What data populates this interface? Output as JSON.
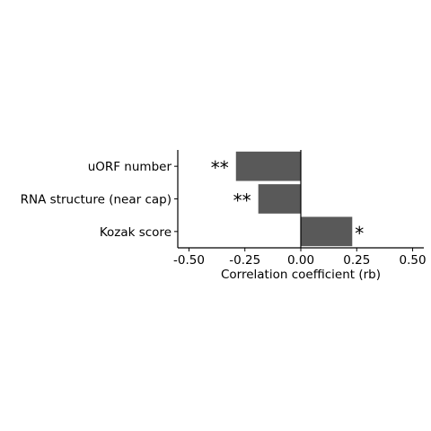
{
  "chart_data": {
    "type": "bar",
    "orientation": "horizontal",
    "categories": [
      "uORF number",
      "RNA structure (near cap)",
      "Kozak score"
    ],
    "values": [
      -0.29,
      -0.19,
      0.23
    ],
    "annotations": [
      "**",
      "**",
      "*"
    ],
    "xlabel": "Correlation coefficient (rb)",
    "ylabel": "",
    "xlim": [
      -0.55,
      0.55
    ],
    "xticks": [
      -0.5,
      -0.25,
      0.0,
      0.25,
      0.5
    ],
    "xtick_labels": [
      "-0.50",
      "-0.25",
      "0.00",
      "0.25",
      "0.50"
    ],
    "grid": false,
    "bar_color": "#595959",
    "zero_line": true
  }
}
